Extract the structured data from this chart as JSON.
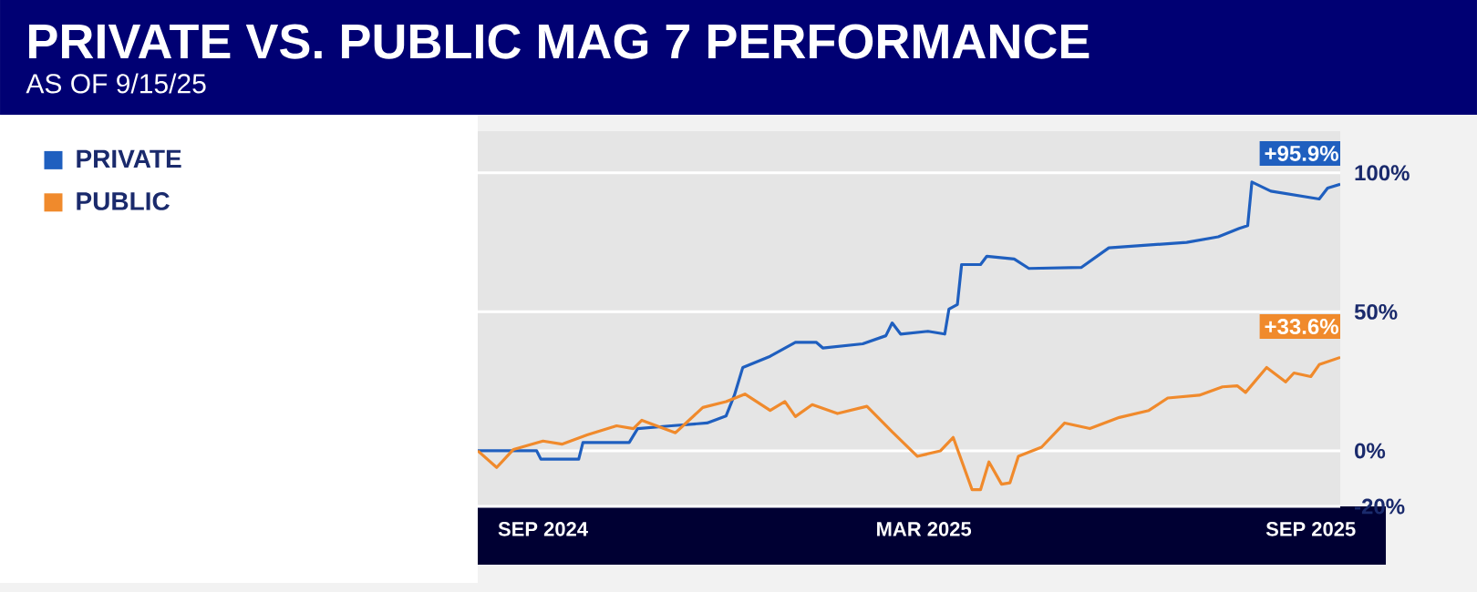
{
  "chart_data": {
    "type": "line",
    "title": "PRIVATE VS. PUBLIC MAG 7 PERFORMANCE",
    "subtitle": "AS OF 9/15/25",
    "xlim": [
      "2024-08-01",
      "2025-09-15"
    ],
    "xticks": [
      {
        "value": "2024-09-01",
        "label": "SEP 2024"
      },
      {
        "value": "2025-03-01",
        "label": "MAR 2025"
      },
      {
        "value": "2025-09-01",
        "label": "SEP 2025"
      }
    ],
    "ylim": [
      -20,
      115
    ],
    "yticks": [
      {
        "value": -20,
        "label": "-20%"
      },
      {
        "value": 0,
        "label": "0%"
      },
      {
        "value": 50,
        "label": "50%"
      },
      {
        "value": 100,
        "label": "100%"
      }
    ],
    "grid": "y",
    "legend": "top left",
    "marker": "none",
    "line_style": "solid",
    "series": [
      {
        "name": "PRIVATE",
        "color": "#1f5fbf",
        "x": [
          "2024-08-01",
          "2024-08-29",
          "2024-08-31",
          "2024-09-18",
          "2024-09-20",
          "2024-10-12",
          "2024-10-16",
          "2024-11-01",
          "2024-11-18",
          "2024-11-27",
          "2024-12-01",
          "2024-12-05",
          "2024-12-18",
          "2024-12-30",
          "2025-01-09",
          "2025-01-12",
          "2025-01-31",
          "2025-02-11",
          "2025-02-14",
          "2025-02-18",
          "2025-03-03",
          "2025-03-11",
          "2025-03-13",
          "2025-03-17",
          "2025-03-19",
          "2025-03-28",
          "2025-03-31",
          "2025-04-13",
          "2025-04-20",
          "2025-05-15",
          "2025-05-28",
          "2025-07-04",
          "2025-07-19",
          "2025-07-29",
          "2025-08-02",
          "2025-08-04",
          "2025-08-13",
          "2025-09-05",
          "2025-09-09",
          "2025-09-15"
        ],
        "values": [
          0,
          0,
          -3,
          -3,
          3,
          3,
          8,
          9,
          10,
          12.5,
          20,
          30,
          34,
          39,
          39,
          37,
          38.5,
          41.4,
          46,
          42,
          43,
          42,
          51,
          52.6,
          67,
          67,
          70,
          69,
          65.6,
          66,
          73,
          75,
          77,
          80,
          81,
          96.7,
          93.4,
          90.6,
          94.5,
          95.9
        ]
      },
      {
        "name": "PUBLIC",
        "color": "#f08a2c",
        "x": [
          "2024-08-01",
          "2024-08-10",
          "2024-08-18",
          "2024-09-01",
          "2024-09-10",
          "2024-09-22",
          "2024-10-06",
          "2024-10-14",
          "2024-10-18",
          "2024-11-03",
          "2024-11-16",
          "2024-11-27",
          "2024-12-06",
          "2024-12-18",
          "2024-12-25",
          "2024-12-30",
          "2025-01-07",
          "2025-01-19",
          "2025-02-02",
          "2025-02-14",
          "2025-02-26",
          "2025-03-09",
          "2025-03-15",
          "2025-03-24",
          "2025-03-28",
          "2025-04-01",
          "2025-04-07",
          "2025-04-11",
          "2025-04-15",
          "2025-04-26",
          "2025-05-07",
          "2025-05-19",
          "2025-06-02",
          "2025-06-16",
          "2025-06-25",
          "2025-07-10",
          "2025-07-21",
          "2025-07-28",
          "2025-08-01",
          "2025-08-11",
          "2025-08-20",
          "2025-08-24",
          "2025-09-01",
          "2025-09-05",
          "2025-09-15"
        ],
        "values": [
          0,
          -6,
          0.5,
          3.5,
          2.4,
          5.7,
          9,
          8,
          11,
          6.5,
          15.6,
          17.7,
          20.4,
          14.5,
          17.7,
          12.3,
          16.6,
          13.4,
          16,
          6.8,
          -2,
          0,
          4.8,
          -14,
          -14,
          -4,
          -12,
          -11.5,
          -2,
          1.3,
          10,
          8,
          12,
          14.5,
          19,
          20,
          23,
          23.4,
          21,
          30,
          24.8,
          28,
          26.7,
          31,
          33.6
        ]
      }
    ],
    "annotations": [
      {
        "text": "+95.9%",
        "x": "2025-09-15",
        "y": 95.9
      },
      {
        "text": "+33.6%",
        "x": "2025-09-15",
        "y": 33.6
      }
    ]
  }
}
